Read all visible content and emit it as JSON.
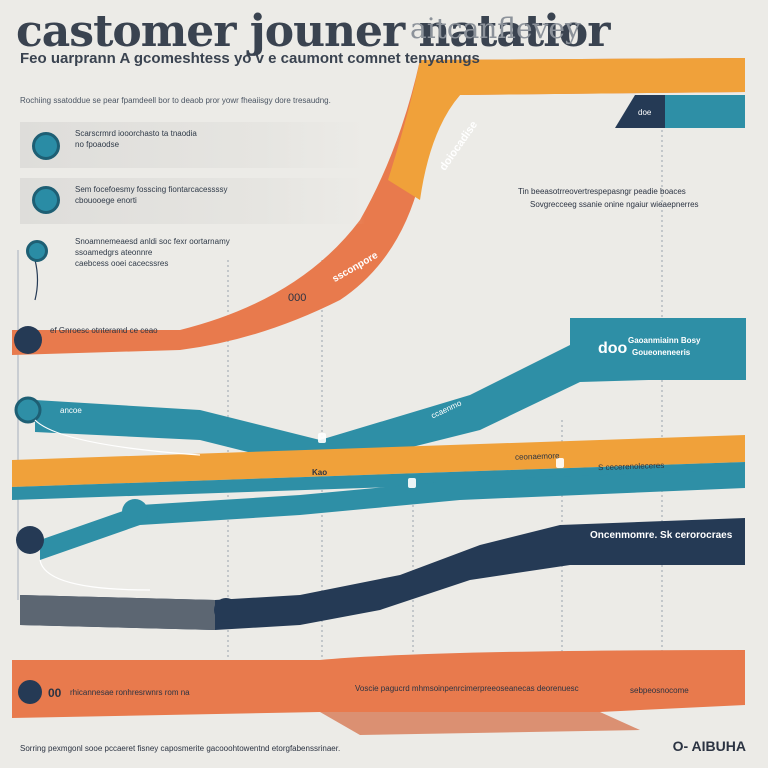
{
  "header": {
    "title": "castomer jouner natatior",
    "title_accent": "aitcanflevey",
    "subtitle": "Feo uarprann A gcomeshtess yo v e caumont comnet tenyanngs",
    "intro": "Rochiing ssatoddue se pear fpamdeell bor to deaob pror yowr fheaiisgy dore tresaudng."
  },
  "panels": [
    {
      "icon": "chat-bubble-icon",
      "line1": "Scarscrmrd iooorchasto ta tnaodia",
      "line2": "no fpoaodse"
    },
    {
      "icon": "user-laptop-icon",
      "line1": "Sem focefoesmy fosscing fiontarcacessssy",
      "line2": "cbouooege enorti"
    },
    {
      "icon": "phone-support-icon",
      "line1": "Snoamnemeaesd anldi soc fexr oortarnamy",
      "line2": "ssoamedgrs ateonnre",
      "line3": "caebcess ooei cacecssres"
    }
  ],
  "ribbons": {
    "orange_top": {
      "label": "ssconpore",
      "tag": "000",
      "side_text": "ef Gnroesc otnteramd ce ceao"
    },
    "navy_tab": {
      "text": "doiocadise",
      "sub": "doe"
    },
    "right_note": {
      "line1": "Tin beeasotrreovertrespepasngr peadie boaces",
      "line2": "Sovgrecceeg ssanie onine ngaiur wieaepnerres"
    },
    "teal_top": {
      "badge": "doo",
      "line1": "Gaoanmiainn Bosy",
      "line2": "Goueoneneeris"
    },
    "teal_mid": {
      "label": "ccaenmo",
      "left": "ancoe"
    },
    "yellow": {
      "labels": [
        "ceonaemore",
        "S cecerenoleceres"
      ],
      "center": "Kao"
    },
    "navy_bottom": {
      "label": "Oncenmomre. Sk cerorocraes"
    },
    "bottom_orange": {
      "tag": "00",
      "text1": "rhicannesae ronhresrwnrs rom na",
      "text2": "Voscie pagucrd mhmsoinpenrcimerpreeoseanecas deorenuesc",
      "text3": "sebpeosnocome"
    }
  },
  "footer": {
    "note": "Sorring pexmgonl sooe pccaeret fisney caposmerite gacooohtowentnd etorgfabenssrinaer.",
    "brand": "O- AIBUHA"
  },
  "colors": {
    "orange": "#E87A4D",
    "amber": "#F0A13A",
    "teal": "#2E8FA6",
    "navy": "#253A55",
    "background": "#ECEBE7"
  }
}
